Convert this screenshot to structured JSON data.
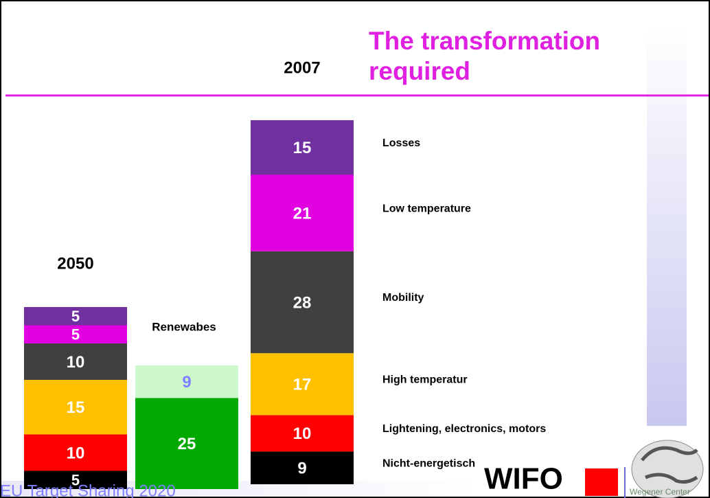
{
  "chart_data": {
    "type": "stacked-blocks",
    "title": "The transformation required",
    "categories": [
      "Nicht-energetisch",
      "Lightening, electronics, motors",
      "High temperatur",
      "Mobility",
      "Low temperature",
      "Losses"
    ],
    "colors": [
      "#000000",
      "#ff0000",
      "#ffc000",
      "#404040",
      "#e000e0",
      "#7030a0"
    ],
    "series": [
      {
        "name": "2007",
        "values": [
          9,
          10,
          17,
          28,
          21,
          15
        ]
      },
      {
        "name": "2050",
        "values": [
          5,
          10,
          15,
          10,
          5,
          5
        ]
      }
    ],
    "renewables": {
      "name": "Renewabes",
      "values": [
        25,
        9
      ],
      "colors": [
        "#00aa00",
        "#ccf8cc"
      ],
      "label_colors": [
        "#ffffff",
        "#8080ff"
      ]
    },
    "footer": "EU Target Sharing 2020",
    "logos": [
      "WIFO",
      "Wegener Center"
    ]
  }
}
